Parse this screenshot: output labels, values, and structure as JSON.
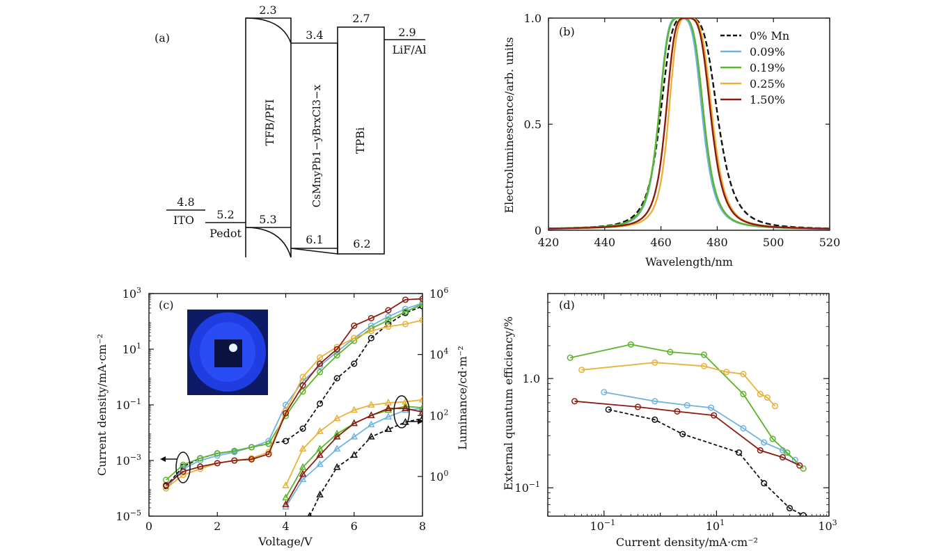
{
  "colors": {
    "mn0": "#111111",
    "mn009": "#6fb3e0",
    "mn019": "#5ab52a",
    "mn025": "#e9b13a",
    "mn150": "#8b1a10"
  },
  "panel_a": {
    "label": "(a)",
    "layers": [
      {
        "name": "ITO",
        "lower": "4.8"
      },
      {
        "name": "Pedot",
        "lower": "5.2"
      },
      {
        "name": "TFB/PFI",
        "upper": "2.3",
        "lower": "5.3"
      },
      {
        "name": "CsMnyPb1−yBrxCl3−x",
        "upper": "3.4",
        "lower": "6.1"
      },
      {
        "name": "TPBi",
        "upper": "2.7",
        "lower": "6.2"
      },
      {
        "name": "LiF/Al",
        "upper": "2.9"
      }
    ]
  },
  "chart_data": [
    {
      "panel": "(b)",
      "type": "line",
      "xlabel": "Wavelength/nm",
      "ylabel": "Electroluminescence/arb. units",
      "xlim": [
        420,
        520
      ],
      "ylim": [
        0,
        1.0
      ],
      "xticks": [
        "420",
        "440",
        "460",
        "480",
        "500",
        "520"
      ],
      "yticks": [
        "0",
        "0.5",
        "1.0"
      ],
      "legend_position": "top-right",
      "series": [
        {
          "name": "0% Mn",
          "style": "dashed",
          "color": "#111111",
          "peak": 469,
          "hwhm_left": 9.5,
          "hwhm_right": 11.5
        },
        {
          "name": "0.09%",
          "color": "#6fb3e0",
          "peak": 466.5,
          "hwhm_left": 7.5,
          "hwhm_right": 8.5
        },
        {
          "name": "0.19%",
          "color": "#5ab52a",
          "peak": 467,
          "hwhm_left": 8,
          "hwhm_right": 8.5
        },
        {
          "name": "0.25%",
          "color": "#e9b13a",
          "peak": 469.5,
          "hwhm_left": 7,
          "hwhm_right": 9
        },
        {
          "name": "1.50%",
          "color": "#8b1a10",
          "peak": 469,
          "hwhm_left": 7.5,
          "hwhm_right": 9
        }
      ]
    },
    {
      "panel": "(c)",
      "type": "line",
      "xlabel": "Voltage/V",
      "ylabel": "Current density/mA·cm⁻²",
      "y2label": "Luminance/cd·m⁻²",
      "xlim": [
        0,
        8
      ],
      "ylim": [
        1e-05,
        1000
      ],
      "y2lim": [
        0.05,
        1000000
      ],
      "yscale": "log",
      "xticks": [
        "0",
        "2",
        "4",
        "6",
        "8"
      ],
      "yticks": [
        {
          "base": "10",
          "exp": "3",
          "v": 1000
        },
        {
          "base": "10",
          "exp": "1",
          "v": 10
        },
        {
          "base": "10",
          "exp": "−1",
          "v": 0.1
        },
        {
          "base": "10",
          "exp": "−3",
          "v": 0.001
        },
        {
          "base": "10",
          "exp": "−5",
          "v": 1e-05
        }
      ],
      "y2ticks": [
        {
          "base": "10",
          "exp": "6",
          "v": 1000000
        },
        {
          "base": "10",
          "exp": "4",
          "v": 10000
        },
        {
          "base": "10",
          "exp": "2",
          "v": 100
        },
        {
          "base": "10",
          "exp": "0",
          "v": 1
        }
      ],
      "current_density": [
        {
          "name": "0% Mn",
          "color": "#111111",
          "style": "dashed",
          "x": [
            0.5,
            1,
            1.5,
            2,
            2.5,
            3,
            3.5,
            4,
            4.5,
            5,
            5.5,
            6,
            6.5,
            7,
            7.5,
            8
          ],
          "y": [
            0.00012,
            0.0006,
            0.0012,
            0.0018,
            0.0022,
            0.003,
            0.004,
            0.005,
            0.014,
            0.11,
            0.9,
            3,
            25,
            80,
            200,
            350
          ]
        },
        {
          "name": "0.09%",
          "color": "#6fb3e0",
          "x": [
            0.5,
            1,
            1.5,
            2,
            2.5,
            3,
            3.5,
            4,
            4.5,
            5,
            5.5,
            6,
            6.5,
            7,
            7.5,
            8
          ],
          "y": [
            0.0001,
            0.0005,
            0.001,
            0.0015,
            0.002,
            0.003,
            0.005,
            0.1,
            0.7,
            2.5,
            8,
            25,
            70,
            150,
            280,
            450
          ]
        },
        {
          "name": "0.19%",
          "color": "#5ab52a",
          "x": [
            0.5,
            1,
            1.5,
            2,
            2.5,
            3,
            3.5,
            4,
            4.5,
            5,
            5.5,
            6,
            6.5,
            7,
            7.5,
            8
          ],
          "y": [
            0.0002,
            0.0007,
            0.0012,
            0.0018,
            0.0022,
            0.003,
            0.004,
            0.04,
            0.3,
            1.5,
            6,
            20,
            55,
            110,
            220,
            420
          ]
        },
        {
          "name": "0.25%",
          "color": "#e9b13a",
          "x": [
            0.5,
            1,
            1.5,
            2,
            2.5,
            3,
            3.5,
            4,
            4.5,
            5,
            5.5,
            6,
            6.5,
            7,
            7.5,
            8
          ],
          "y": [
            0.0001,
            0.0003,
            0.0005,
            0.0008,
            0.001,
            0.0012,
            0.002,
            0.06,
            1,
            5,
            12,
            25,
            45,
            65,
            80,
            110
          ]
        },
        {
          "name": "1.50%",
          "color": "#8b1a10",
          "x": [
            0.5,
            1,
            1.5,
            2,
            2.5,
            3,
            3.5,
            4,
            4.5,
            5,
            5.5,
            6,
            6.5,
            7,
            7.5,
            8
          ],
          "y": [
            0.00013,
            0.0004,
            0.0006,
            0.0008,
            0.001,
            0.0011,
            0.0017,
            0.05,
            0.5,
            3,
            10,
            70,
            130,
            250,
            600,
            650
          ]
        }
      ],
      "luminance": [
        {
          "name": "0% Mn",
          "color": "#111111",
          "style": "dashed",
          "x": [
            4.7,
            5,
            5.5,
            6,
            6.5,
            7,
            7.5,
            8
          ],
          "y": [
            0.05,
            0.25,
            2,
            5,
            20,
            35,
            60,
            80
          ]
        },
        {
          "name": "0.09%",
          "color": "#6fb3e0",
          "x": [
            4,
            4.5,
            5,
            5.5,
            6,
            6.5,
            7,
            7.5,
            8
          ],
          "y": [
            0.1,
            0.8,
            2.5,
            8,
            20,
            50,
            90,
            150,
            170
          ]
        },
        {
          "name": "0.19%",
          "color": "#5ab52a",
          "x": [
            4,
            4.5,
            5,
            5.5,
            6,
            6.5,
            7,
            7.5,
            8
          ],
          "y": [
            0.2,
            2,
            8,
            25,
            55,
            100,
            150,
            200,
            180
          ]
        },
        {
          "name": "0.25%",
          "color": "#e9b13a",
          "x": [
            4,
            4.5,
            5,
            5.5,
            6,
            6.5,
            7,
            7.5,
            8
          ],
          "y": [
            0.5,
            8,
            30,
            80,
            150,
            220,
            260,
            280,
            330
          ]
        },
        {
          "name": "1.50%",
          "color": "#8b1a10",
          "x": [
            4,
            4.5,
            5,
            5.5,
            6,
            6.5,
            7,
            7.5,
            8
          ],
          "y": [
            0.12,
            1.2,
            5,
            20,
            55,
            100,
            170,
            170,
            130
          ]
        }
      ]
    },
    {
      "panel": "(d)",
      "type": "line",
      "xlabel": "Current density/mA·cm⁻²",
      "ylabel": "External quantum efficiency/%",
      "xscale": "log",
      "yscale": "log",
      "xlim": [
        0.01,
        1000
      ],
      "ylim": [
        0.055,
        6
      ],
      "xticks": [
        {
          "base": "10",
          "exp": "−1",
          "v": 0.1
        },
        {
          "base": "10",
          "exp": "1",
          "v": 10
        },
        {
          "base": "10",
          "exp": "3",
          "v": 1000
        }
      ],
      "yticks": [
        {
          "text": "1.0",
          "v": 1
        },
        {
          "base": "10",
          "exp": "−1",
          "v": 0.1
        }
      ],
      "series": [
        {
          "name": "0% Mn",
          "color": "#111111",
          "style": "dashed",
          "x": [
            0.12,
            0.8,
            2.5,
            25,
            70,
            200,
            350
          ],
          "y": [
            0.52,
            0.42,
            0.31,
            0.21,
            0.11,
            0.065,
            0.056
          ]
        },
        {
          "name": "0.09%",
          "color": "#6fb3e0",
          "x": [
            0.1,
            0.8,
            3,
            8,
            30,
            70,
            150,
            250
          ],
          "y": [
            0.75,
            0.62,
            0.57,
            0.54,
            0.35,
            0.26,
            0.22,
            0.18
          ]
        },
        {
          "name": "0.19%",
          "color": "#5ab52a",
          "x": [
            0.025,
            0.3,
            1.5,
            6,
            30,
            100,
            180,
            350
          ],
          "y": [
            1.55,
            2.05,
            1.75,
            1.65,
            0.72,
            0.28,
            0.21,
            0.15
          ]
        },
        {
          "name": "0.25%",
          "color": "#e9b13a",
          "x": [
            0.04,
            0.8,
            6,
            15,
            30,
            60,
            80,
            110
          ],
          "y": [
            1.2,
            1.4,
            1.3,
            1.15,
            1.1,
            0.72,
            0.67,
            0.56
          ]
        },
        {
          "name": "1.50%",
          "color": "#8b1a10",
          "x": [
            0.03,
            0.4,
            2,
            9,
            60,
            150,
            300
          ],
          "y": [
            0.62,
            0.55,
            0.5,
            0.46,
            0.22,
            0.19,
            0.16
          ]
        }
      ]
    }
  ]
}
